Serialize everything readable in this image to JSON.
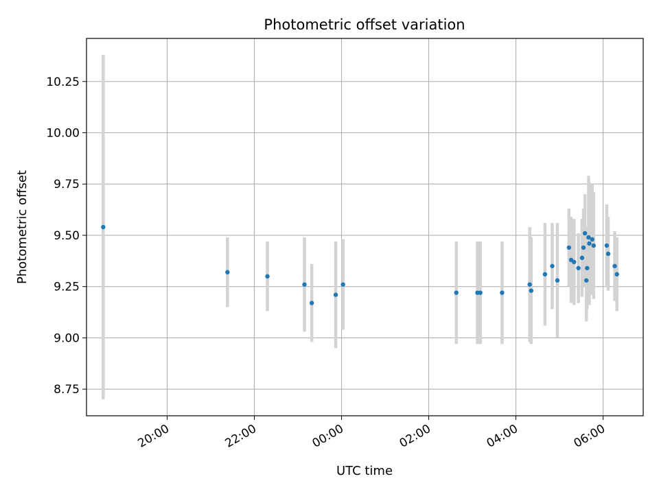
{
  "chart_data": {
    "type": "scatter",
    "title": "Photometric offset variation",
    "xlabel": "UTC time",
    "ylabel": "Photometric offset",
    "x_ticks": [
      "20:00",
      "22:00",
      "00:00",
      "02:00",
      "04:00",
      "06:00"
    ],
    "y_ticks": [
      "8.75",
      "9.00",
      "9.25",
      "9.50",
      "9.75",
      "10.00",
      "10.25"
    ],
    "xlim_hours": [
      -5.85,
      6.92
    ],
    "ylim": [
      8.62,
      10.46
    ],
    "grid": true,
    "colors": {
      "point": "#1f77b4",
      "errorbar": "#d3d3d3",
      "grid": "#b0b0b0"
    },
    "series": [
      {
        "points": [
          {
            "x": "18:32",
            "y": 9.54,
            "err": 0.84
          },
          {
            "x": "21:23",
            "y": 9.32,
            "err": 0.17
          },
          {
            "x": "22:18",
            "y": 9.3,
            "err": 0.17
          },
          {
            "x": "23:09",
            "y": 9.26,
            "err": 0.23
          },
          {
            "x": "23:19",
            "y": 9.17,
            "err": 0.19
          },
          {
            "x": "23:52",
            "y": 9.21,
            "err": 0.26
          },
          {
            "x": "00:02",
            "y": 9.26,
            "err": 0.22
          },
          {
            "x": "02:38",
            "y": 9.22,
            "err": 0.25
          },
          {
            "x": "03:07",
            "y": 9.22,
            "err": 0.25
          },
          {
            "x": "03:11",
            "y": 9.22,
            "err": 0.25
          },
          {
            "x": "03:41",
            "y": 9.22,
            "err": 0.25
          },
          {
            "x": "04:19",
            "y": 9.26,
            "err": 0.28
          },
          {
            "x": "04:21",
            "y": 9.23,
            "err": 0.26
          },
          {
            "x": "04:40",
            "y": 9.31,
            "err": 0.25
          },
          {
            "x": "04:50",
            "y": 9.35,
            "err": 0.21
          },
          {
            "x": "04:57",
            "y": 9.28,
            "err": 0.28
          },
          {
            "x": "05:13",
            "y": 9.44,
            "err": 0.19
          },
          {
            "x": "05:16",
            "y": 9.38,
            "err": 0.21
          },
          {
            "x": "05:20",
            "y": 9.37,
            "err": 0.21
          },
          {
            "x": "05:26",
            "y": 9.34,
            "err": 0.17
          },
          {
            "x": "05:31",
            "y": 9.39,
            "err": 0.19
          },
          {
            "x": "05:33",
            "y": 9.44,
            "err": 0.19
          },
          {
            "x": "05:35",
            "y": 9.51,
            "err": 0.19
          },
          {
            "x": "05:37",
            "y": 9.28,
            "err": 0.2
          },
          {
            "x": "05:38",
            "y": 9.34,
            "err": 0.2
          },
          {
            "x": "05:40",
            "y": 9.49,
            "err": 0.3
          },
          {
            "x": "05:41",
            "y": 9.46,
            "err": 0.3
          },
          {
            "x": "05:45",
            "y": 9.48,
            "err": 0.27
          },
          {
            "x": "05:47",
            "y": 9.45,
            "err": 0.26
          },
          {
            "x": "06:05",
            "y": 9.45,
            "err": 0.2
          },
          {
            "x": "06:07",
            "y": 9.41,
            "err": 0.18
          },
          {
            "x": "06:16",
            "y": 9.35,
            "err": 0.17
          },
          {
            "x": "06:19",
            "y": 9.31,
            "err": 0.18
          }
        ]
      }
    ]
  }
}
